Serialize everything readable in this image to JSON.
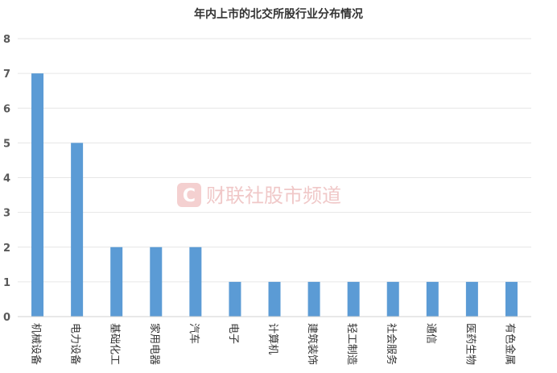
{
  "chart_data": {
    "type": "bar",
    "title": "年内上市的北交所股行业分布情况",
    "xlabel": "",
    "ylabel": "",
    "categories": [
      "机械设备",
      "电力设备",
      "基础化工",
      "家用电器",
      "汽车",
      "电子",
      "计算机",
      "建筑装饰",
      "轻工制造",
      "社会服务",
      "通信",
      "医药生物",
      "有色金属"
    ],
    "values": [
      7,
      5,
      2,
      2,
      2,
      1,
      1,
      1,
      1,
      1,
      1,
      1,
      1
    ],
    "ylim": [
      0,
      8
    ],
    "yticks": [
      "0",
      "1",
      "2",
      "3",
      "4",
      "5",
      "6",
      "7",
      "8"
    ],
    "grid": true,
    "legend": "none",
    "bar_color": "#5b9bd5",
    "grid_color": "#e6e6e6"
  },
  "watermark": {
    "logo_letter": "C",
    "text": "财联社股市频道",
    "color": "#f0c8c8"
  }
}
